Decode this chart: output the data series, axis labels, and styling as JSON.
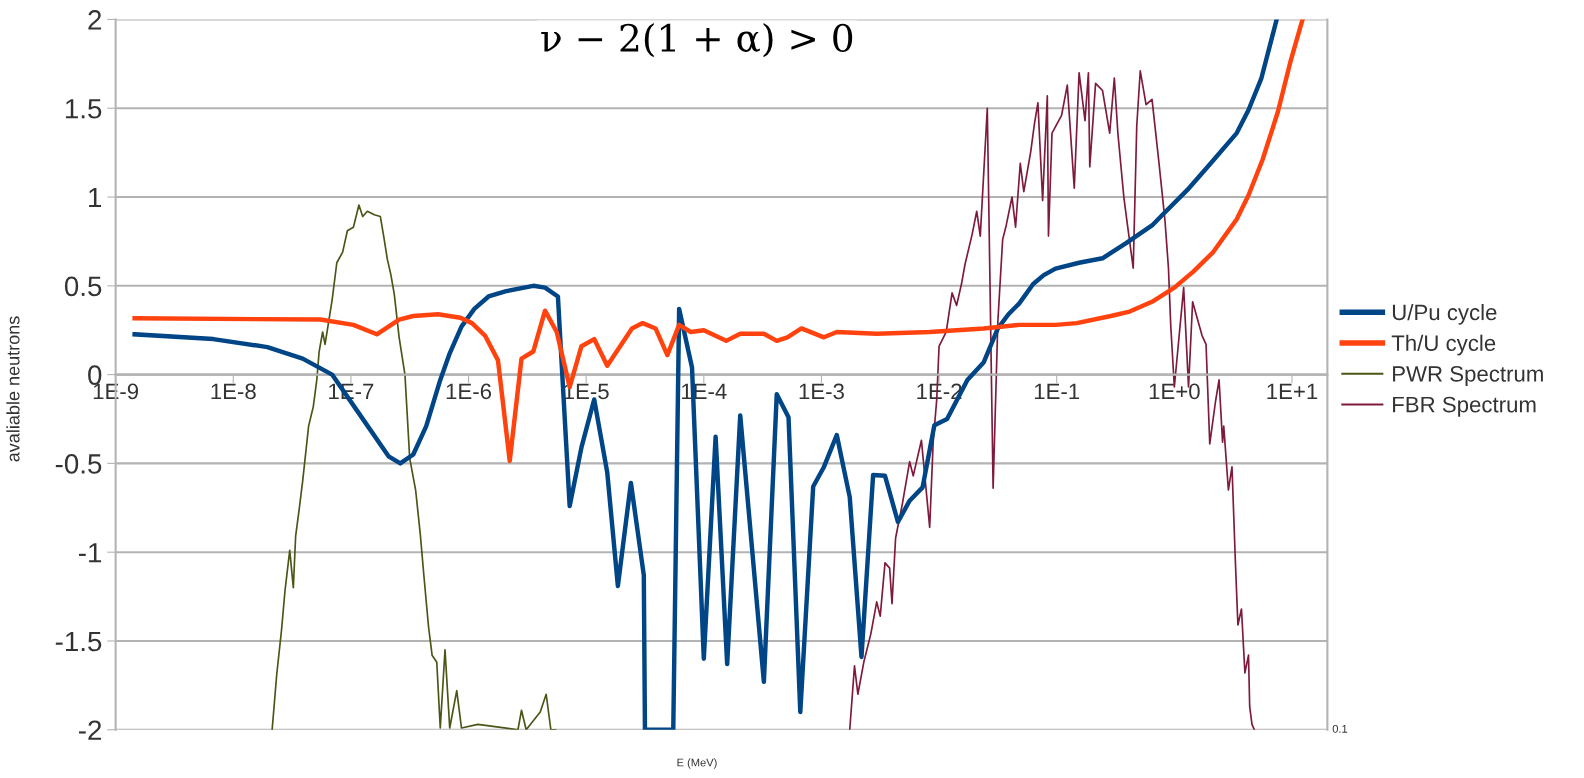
{
  "chart_data": {
    "type": "line",
    "title": "ν − 2(1 + α) > 0",
    "xlabel": "E (MeV)",
    "ylabel": "avaliable neutrons",
    "log": "x",
    "grid": "y",
    "legend": "right",
    "marker": "none",
    "line_style": "solid",
    "xlim": [
      1e-09,
      20
    ],
    "xticks": [
      {
        "value": 1e-09,
        "label": "1E-9"
      },
      {
        "value": 1e-08,
        "label": "1E-8"
      },
      {
        "value": 1e-07,
        "label": "1E-7"
      },
      {
        "value": 1e-06,
        "label": "1E-6"
      },
      {
        "value": 1e-05,
        "label": "1E-5"
      },
      {
        "value": 0.0001,
        "label": "1E-4"
      },
      {
        "value": 0.001,
        "label": "1E-3"
      },
      {
        "value": 0.01,
        "label": "1E-2"
      },
      {
        "value": 0.1,
        "label": "1E-1"
      },
      {
        "value": 1,
        "label": "1E+0"
      },
      {
        "value": 10,
        "label": "1E+1"
      }
    ],
    "ylim": [
      -2,
      2
    ],
    "yticks": [
      -2,
      -1.5,
      -1,
      -0.5,
      0,
      0.5,
      1,
      1.5,
      2
    ],
    "annotations": [
      "0.1"
    ],
    "series": [
      {
        "name": "U/Pu cycle",
        "color": "#004586",
        "x": [
          1.45e-09,
          6.76e-09,
          1.95e-08,
          3.89e-08,
          6.92e-08,
          1.12e-07,
          2.09e-07,
          2.63e-07,
          3.39e-07,
          4.37e-07,
          5.75e-07,
          6.92e-07,
          8.71e-07,
          1.12e-06,
          1.48e-06,
          2.09e-06,
          3.55e-06,
          4.47e-06,
          5.75e-06,
          7.24e-06,
          9.12e-06,
          1.17e-05,
          1.51e-05,
          1.86e-05,
          2.4e-05,
          3.09e-05,
          3.16e-05,
          5.5e-05,
          6.17e-05,
          7.94e-05,
          0.0001,
          0.000126,
          0.000158,
          0.000204,
          0.000324,
          0.000417,
          0.000525,
          0.000661,
          0.000851,
          0.00105,
          0.00135,
          0.00174,
          0.00219,
          0.00275,
          0.00347,
          0.00447,
          0.00562,
          0.00724,
          0.00912,
          0.0117,
          0.0174,
          0.024,
          0.0316,
          0.0389,
          0.0479,
          0.0631,
          0.0776,
          0.0977,
          0.155,
          0.245,
          0.389,
          0.646,
          0.794,
          1.29,
          2.04,
          3.39,
          4.27,
          5.5,
          7.41
        ],
        "values": [
          0.227,
          0.2,
          0.155,
          0.09,
          0.0,
          -0.2,
          -0.46,
          -0.5,
          -0.45,
          -0.29,
          -0.03,
          0.12,
          0.27,
          0.37,
          0.44,
          0.47,
          0.5,
          0.49,
          0.44,
          -0.74,
          -0.41,
          -0.14,
          -0.55,
          -1.19,
          -0.61,
          -1.13,
          -2.0,
          -2.0,
          0.37,
          0.04,
          -1.6,
          -0.35,
          -1.63,
          -0.23,
          -1.73,
          -0.11,
          -0.24,
          -1.9,
          -0.63,
          -0.52,
          -0.34,
          -0.69,
          -1.59,
          -0.565,
          -0.57,
          -0.83,
          -0.71,
          -0.635,
          -0.285,
          -0.25,
          -0.03,
          0.07,
          0.26,
          0.34,
          0.4,
          0.51,
          0.56,
          0.597,
          0.63,
          0.655,
          0.74,
          0.84,
          0.9,
          1.04,
          1.19,
          1.36,
          1.49,
          1.67,
          2.0
        ]
      },
      {
        "name": "Th/U cycle",
        "color": "#ff420e",
        "x": [
          1.45e-09,
          5.5e-08,
          1.05e-07,
          1.66e-07,
          2.57e-07,
          3.39e-07,
          5.5e-07,
          8.51e-07,
          1.07e-06,
          1.38e-06,
          1.78e-06,
          2.24e-06,
          2.82e-06,
          3.55e-06,
          4.47e-06,
          5.62e-06,
          7.24e-06,
          9.12e-06,
          1.17e-05,
          1.51e-05,
          2.45e-05,
          3.02e-05,
          3.89e-05,
          4.9e-05,
          6.17e-05,
          7.76e-05,
          0.0001,
          0.000155,
          0.000204,
          0.000324,
          0.000417,
          0.000513,
          0.000676,
          0.00105,
          0.00135,
          0.00295,
          0.00832,
          0.024,
          0.0479,
          0.0977,
          0.148,
          0.288,
          0.417,
          0.646,
          1.0,
          1.45,
          2.14,
          3.39,
          4.27,
          5.62,
          7.59,
          9.77,
          12.3
        ],
        "values": [
          0.317,
          0.31,
          0.28,
          0.227,
          0.31,
          0.33,
          0.34,
          0.32,
          0.29,
          0.22,
          0.08,
          -0.486,
          0.09,
          0.13,
          0.36,
          0.24,
          -0.07,
          0.16,
          0.2,
          0.05,
          0.26,
          0.29,
          0.26,
          0.11,
          0.28,
          0.24,
          0.25,
          0.19,
          0.23,
          0.23,
          0.19,
          0.21,
          0.26,
          0.21,
          0.24,
          0.23,
          0.24,
          0.26,
          0.28,
          0.28,
          0.29,
          0.33,
          0.355,
          0.41,
          0.49,
          0.58,
          0.69,
          0.875,
          1.01,
          1.21,
          1.48,
          1.77,
          2.0
        ]
      },
      {
        "name": "PWR Spectrum",
        "color": "#4c5416",
        "x": [
          2.14e-08,
          2.34e-08,
          2.57e-08,
          2.75e-08,
          3.02e-08,
          3.24e-08,
          3.39e-08,
          3.63e-08,
          3.89e-08,
          4.37e-08,
          4.79e-08,
          5.13e-08,
          5.37e-08,
          5.75e-08,
          6.03e-08,
          6.92e-08,
          7.59e-08,
          8.51e-08,
          9.33e-08,
          1.05e-07,
          1.17e-07,
          1.26e-07,
          1.38e-07,
          1.58e-07,
          1.78e-07,
          1.91e-07,
          2.04e-07,
          2.19e-07,
          2.34e-07,
          2.57e-07,
          2.88e-07,
          3.16e-07,
          3.55e-07,
          3.89e-07,
          4.17e-07,
          4.57e-07,
          4.9e-07,
          5.37e-07,
          5.75e-07,
          6.31e-07,
          6.92e-07,
          7.94e-07,
          8.71e-07,
          1.2e-06,
          2.63e-06,
          2.82e-06,
          3.09e-06,
          4.07e-06,
          4.57e-06,
          5.01e-06,
          5.5e-06
        ],
        "values": [
          -2.0,
          -1.69,
          -1.44,
          -1.22,
          -0.99,
          -1.2,
          -0.91,
          -0.76,
          -0.6,
          -0.29,
          -0.18,
          -0.03,
          0.13,
          0.24,
          0.17,
          0.42,
          0.63,
          0.69,
          0.81,
          0.83,
          0.955,
          0.89,
          0.92,
          0.9,
          0.89,
          0.77,
          0.65,
          0.56,
          0.45,
          0.21,
          0.0,
          -0.47,
          -0.65,
          -0.9,
          -1.13,
          -1.42,
          -1.58,
          -1.62,
          -1.99,
          -1.55,
          -1.99,
          -1.78,
          -1.99,
          -1.97,
          -2.0,
          -1.89,
          -2.0,
          -1.9,
          -1.8,
          -2.0,
          -2.0
        ]
      },
      {
        "name": "FBR Spectrum",
        "color": "#7e1a3a",
        "x": [
          0.00174,
          0.00191,
          0.00204,
          0.00229,
          0.00263,
          0.00295,
          0.00316,
          0.00347,
          0.0038,
          0.00398,
          0.00427,
          0.0049,
          0.00562,
          0.00603,
          0.00708,
          0.00832,
          0.00891,
          0.00955,
          0.01,
          0.0115,
          0.0129,
          0.0141,
          0.0155,
          0.0166,
          0.0191,
          0.0209,
          0.0224,
          0.0257,
          0.0288,
          0.0316,
          0.0347,
          0.0372,
          0.0417,
          0.0447,
          0.049,
          0.0525,
          0.0603,
          0.0646,
          0.0692,
          0.0759,
          0.0832,
          0.0851,
          0.0912,
          0.11,
          0.123,
          0.141,
          0.155,
          0.174,
          0.186,
          0.191,
          0.214,
          0.245,
          0.282,
          0.309,
          0.331,
          0.372,
          0.398,
          0.447,
          0.479,
          0.513,
          0.575,
          0.646,
          0.692,
          0.741,
          0.832,
          0.891,
          0.933,
          1.0,
          1.2,
          1.32,
          1.43,
          1.72,
          1.86,
          2.0,
          2.24,
          2.4,
          2.57,
          2.63,
          2.88,
          3.09,
          3.31,
          3.47,
          3.72,
          3.98,
          4.27,
          4.37,
          4.57,
          4.79
        ],
        "values": [
          -2.0,
          -1.64,
          -1.8,
          -1.62,
          -1.46,
          -1.28,
          -1.36,
          -1.06,
          -1.09,
          -1.29,
          -0.92,
          -0.72,
          -0.49,
          -0.57,
          -0.37,
          -0.86,
          -0.38,
          -0.14,
          0.16,
          0.24,
          0.46,
          0.39,
          0.51,
          0.62,
          0.79,
          0.92,
          0.78,
          1.5,
          -0.64,
          0.3,
          0.76,
          0.84,
          1.0,
          0.83,
          1.19,
          1.03,
          1.26,
          1.41,
          1.53,
          0.98,
          1.57,
          0.78,
          1.36,
          1.46,
          1.63,
          1.05,
          1.7,
          1.43,
          1.7,
          1.17,
          1.64,
          1.6,
          1.36,
          1.67,
          1.36,
          1.0,
          0.85,
          0.6,
          1.4,
          1.71,
          1.52,
          1.55,
          1.37,
          1.19,
          0.87,
          0.6,
          0.27,
          -0.07,
          0.49,
          -0.07,
          0.41,
          0.22,
          0.17,
          -0.39,
          -0.15,
          -0.03,
          -0.38,
          -0.29,
          -0.65,
          -0.52,
          -1.07,
          -1.41,
          -1.32,
          -1.68,
          -1.58,
          -1.87,
          -1.97,
          -2.0
        ]
      }
    ]
  }
}
